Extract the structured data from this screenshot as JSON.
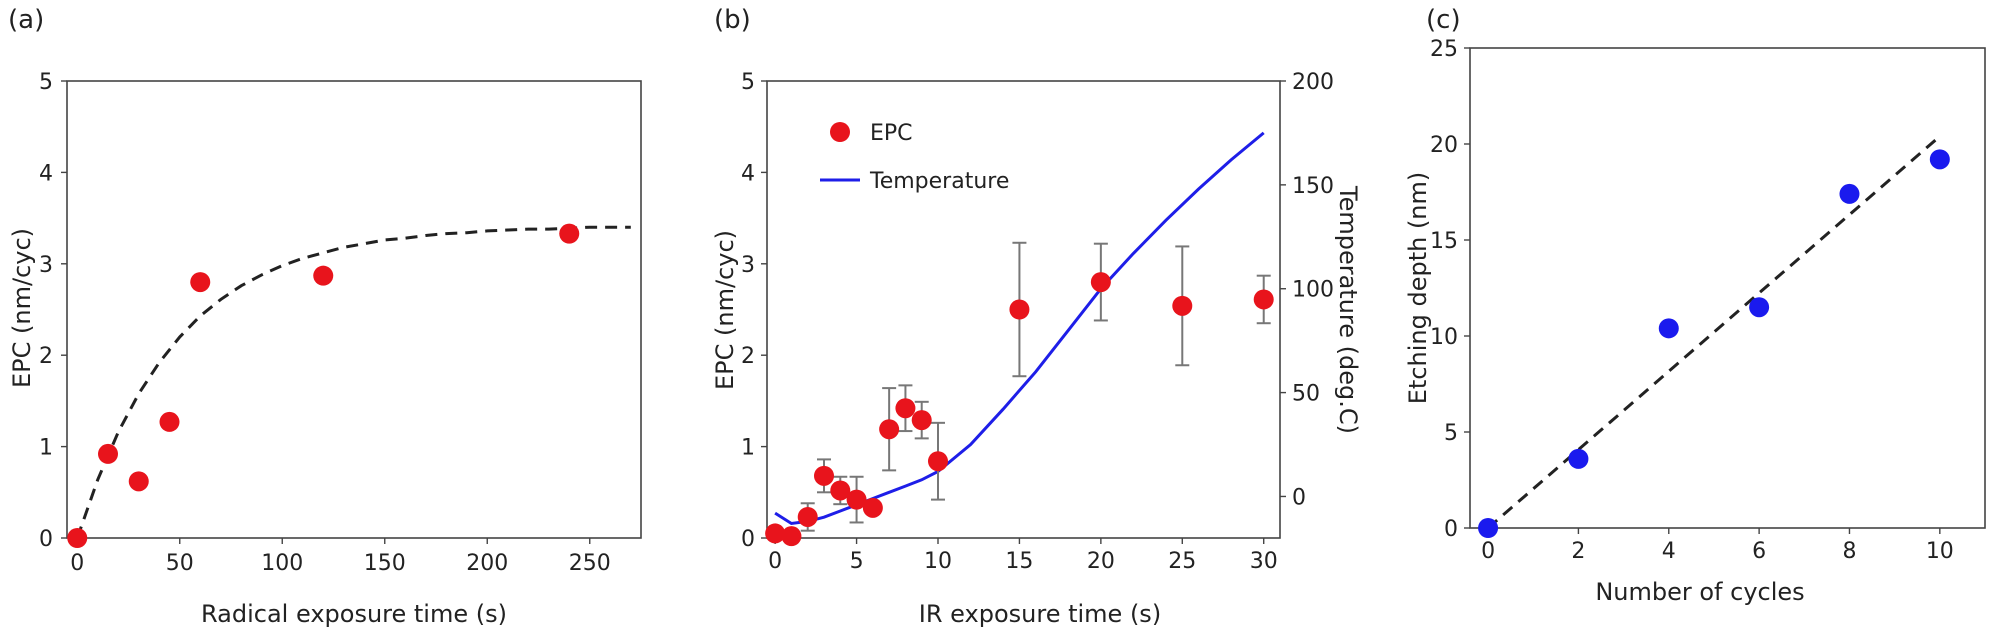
{
  "chart_data": [
    {
      "type": "scatter",
      "panel_label": "(a)",
      "xlabel": "Radical exposure time (s)",
      "ylabel": "EPC (nm/cyc)",
      "xlim": [
        -5,
        275
      ],
      "ylim": [
        0,
        5
      ],
      "xticks": [
        0,
        50,
        100,
        150,
        200,
        250
      ],
      "yticks": [
        0,
        1,
        2,
        3,
        4,
        5
      ],
      "series": [
        {
          "x": [
            0,
            15,
            30,
            45,
            60,
            120,
            240
          ],
          "y": [
            0,
            0.92,
            0.62,
            1.27,
            2.8,
            2.87,
            3.33
          ],
          "color": "#e8141c"
        }
      ],
      "fit": {
        "style": "dashed",
        "x": [
          0,
          10,
          20,
          30,
          40,
          50,
          60,
          70,
          80,
          90,
          100,
          110,
          120,
          130,
          140,
          150,
          160,
          170,
          180,
          190,
          200,
          210,
          220,
          230,
          240,
          250,
          260,
          270
        ],
        "y": [
          0,
          0.64,
          1.16,
          1.58,
          1.92,
          2.2,
          2.43,
          2.61,
          2.76,
          2.88,
          2.98,
          3.06,
          3.12,
          3.18,
          3.22,
          3.26,
          3.28,
          3.31,
          3.33,
          3.34,
          3.36,
          3.37,
          3.38,
          3.38,
          3.39,
          3.4,
          3.4,
          3.4
        ]
      },
      "grid": false
    },
    {
      "type": "scatter",
      "panel_label": "(b)",
      "xlabel": "IR exposure time (s)",
      "ylabel": "EPC (nm/cyc)",
      "y2label": "Temperature (deg.C)",
      "xlim": [
        -0.5,
        31
      ],
      "ylim": [
        0,
        5
      ],
      "y2lim": [
        -20,
        200
      ],
      "xticks": [
        0,
        5,
        10,
        15,
        20,
        25,
        30
      ],
      "yticks": [
        0,
        1,
        2,
        3,
        4,
        5
      ],
      "y2ticks": [
        0,
        50,
        100,
        150,
        200
      ],
      "legend": {
        "position": "upper-left",
        "entries": [
          "EPC",
          "Temperature"
        ]
      },
      "series": [
        {
          "name": "EPC",
          "color": "#e8141c",
          "x": [
            0,
            1,
            2,
            3,
            4,
            5,
            6,
            7,
            8,
            9,
            10,
            15,
            20,
            25,
            30
          ],
          "y": [
            0.05,
            0.02,
            0.23,
            0.68,
            0.52,
            0.42,
            0.33,
            1.19,
            1.42,
            1.29,
            0.84,
            2.5,
            2.8,
            2.54,
            2.61
          ],
          "err": [
            0,
            0,
            0.15,
            0.18,
            0.15,
            0.25,
            0,
            0.45,
            0.25,
            0.2,
            0.42,
            0.73,
            0.42,
            0.65,
            0.26
          ]
        },
        {
          "name": "Temperature",
          "color": "#1e1ee8",
          "type": "line",
          "axis": "y2",
          "x": [
            0,
            1,
            2,
            3,
            4,
            5,
            6,
            7,
            8,
            9,
            10,
            12,
            14,
            16,
            18,
            20,
            22,
            24,
            26,
            28,
            30
          ],
          "y": [
            -8,
            -13,
            -12,
            -10,
            -7,
            -4,
            -1,
            2,
            5,
            8,
            12,
            25,
            42,
            60,
            80,
            100,
            117,
            133,
            148,
            162,
            175
          ]
        }
      ],
      "grid": false
    },
    {
      "type": "scatter",
      "panel_label": "(c)",
      "xlabel": "Number of cycles",
      "ylabel": "Etching depth (nm)",
      "xlim": [
        -0.4,
        11
      ],
      "ylim": [
        0,
        25
      ],
      "xticks": [
        0,
        2,
        4,
        6,
        8,
        10
      ],
      "yticks": [
        0,
        5,
        10,
        15,
        20,
        25
      ],
      "series": [
        {
          "x": [
            0,
            2,
            4,
            6,
            8,
            10
          ],
          "y": [
            0,
            3.6,
            10.4,
            11.5,
            17.4,
            19.2
          ],
          "color": "#1a1aee"
        }
      ],
      "fit": {
        "style": "dashed",
        "x": [
          0,
          10
        ],
        "y": [
          0,
          20.4
        ]
      },
      "grid": false
    }
  ]
}
